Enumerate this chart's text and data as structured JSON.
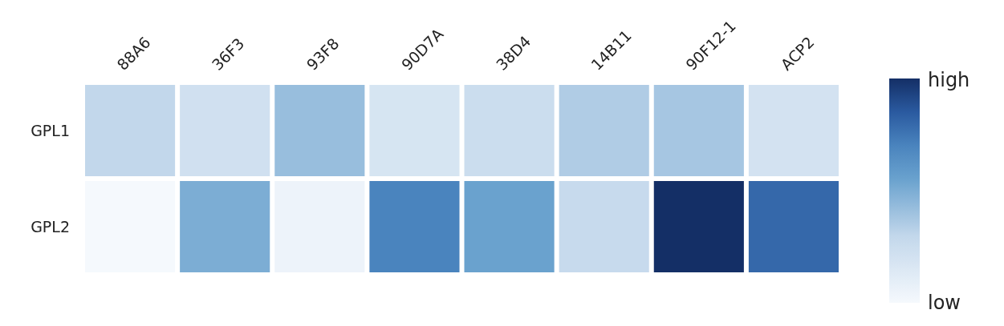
{
  "chart_data": {
    "type": "heatmap",
    "categories": [
      "88A6",
      "36F3",
      "93F8",
      "90D7A",
      "38D4",
      "14B11",
      "90F12-1",
      "ACP2"
    ],
    "y_categories": [
      "GPL1",
      "GPL2"
    ],
    "cells": [
      [
        0.3,
        0.22,
        0.42,
        0.18,
        0.25,
        0.35,
        0.38,
        0.2
      ],
      [
        0.0,
        0.5,
        0.05,
        0.7,
        0.55,
        0.27,
        1.0,
        0.8
      ]
    ],
    "clim": [
      0,
      1
    ],
    "cticks": [
      {
        "value": 0,
        "label": "low"
      },
      {
        "value": 1,
        "label": "high"
      }
    ]
  }
}
